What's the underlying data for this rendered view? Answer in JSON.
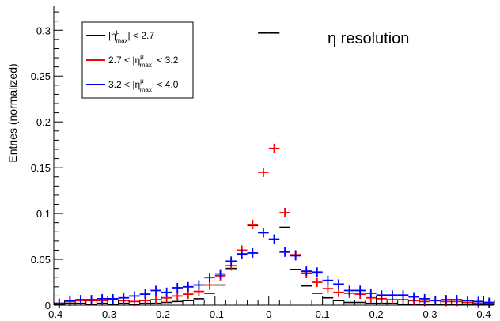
{
  "chart_data": {
    "type": "scatter",
    "title": "η resolution",
    "xlabel": "",
    "ylabel": "Entries (normalized)",
    "xlim": [
      -0.4,
      0.42
    ],
    "ylim": [
      0,
      0.327
    ],
    "x_ticks": [
      "-0.4",
      "-0.3",
      "-0.2",
      "-0.1",
      "0",
      "0.1",
      "0.2",
      "0.3",
      "0.4"
    ],
    "y_ticks": [
      "0",
      "0.05",
      "0.1",
      "0.15",
      "0.2",
      "0.25",
      "0.3"
    ],
    "grid": false,
    "legend_position": "top-left",
    "bin_width": 0.02,
    "x": [
      -0.39,
      -0.37,
      -0.35,
      -0.33,
      -0.31,
      -0.29,
      -0.27,
      -0.25,
      -0.23,
      -0.21,
      -0.19,
      -0.17,
      -0.15,
      -0.13,
      -0.11,
      -0.09,
      -0.07,
      -0.05,
      -0.03,
      -0.01,
      0.01,
      0.03,
      0.05,
      0.07,
      0.09,
      0.11,
      0.13,
      0.15,
      0.17,
      0.19,
      0.21,
      0.23,
      0.25,
      0.27,
      0.29,
      0.31,
      0.33,
      0.35,
      0.37,
      0.39,
      0.41
    ],
    "series": [
      {
        "name_main": "|η",
        "name_sup": "μ",
        "name_sub": "max",
        "name_tail": "| < 2.7",
        "color": "#000000",
        "style": "step",
        "values": [
          0.001,
          0.002,
          0.002,
          0.001,
          0.002,
          0.001,
          0.002,
          0.001,
          0.002,
          0.002,
          0.003,
          0.004,
          0.005,
          0.007,
          0.013,
          0.022,
          0.04,
          0.055,
          0.087,
          0.297,
          0.297,
          0.085,
          0.039,
          0.021,
          0.013,
          0.008,
          0.005,
          0.003,
          0.003,
          0.002,
          0.002,
          0.002,
          0.001,
          0.001,
          0.001,
          0.001,
          0.001,
          0.001,
          0.001,
          0.001,
          0.001
        ]
      },
      {
        "name_main": "2.7 < |η",
        "name_sup": "μ",
        "name_sub": "max",
        "name_tail": "| < 3.2",
        "color": "#ff0000",
        "style": "marker",
        "values": [
          0.002,
          0.004,
          0.005,
          0.005,
          0.005,
          0.006,
          0.005,
          0.004,
          0.005,
          0.006,
          0.008,
          0.01,
          0.012,
          0.015,
          0.022,
          0.032,
          0.043,
          0.06,
          0.088,
          0.145,
          0.171,
          0.101,
          0.055,
          0.035,
          0.025,
          0.018,
          0.014,
          0.013,
          0.012,
          0.008,
          0.007,
          0.006,
          0.006,
          0.005,
          0.004,
          0.005,
          0.004,
          0.004,
          0.003,
          0.002,
          0.002
        ]
      },
      {
        "name_main": "3.2 < |η",
        "name_sup": "μ",
        "name_sub": "max",
        "name_tail": "| < 4.0",
        "color": "#0000ff",
        "style": "marker",
        "values": [
          0.002,
          0.005,
          0.006,
          0.006,
          0.007,
          0.007,
          0.008,
          0.01,
          0.012,
          0.016,
          0.014,
          0.019,
          0.02,
          0.022,
          0.03,
          0.034,
          0.048,
          0.056,
          0.057,
          0.079,
          0.072,
          0.058,
          0.054,
          0.037,
          0.036,
          0.027,
          0.023,
          0.016,
          0.016,
          0.013,
          0.011,
          0.011,
          0.011,
          0.009,
          0.007,
          0.005,
          0.006,
          0.006,
          0.005,
          0.004,
          0.003
        ]
      }
    ]
  }
}
